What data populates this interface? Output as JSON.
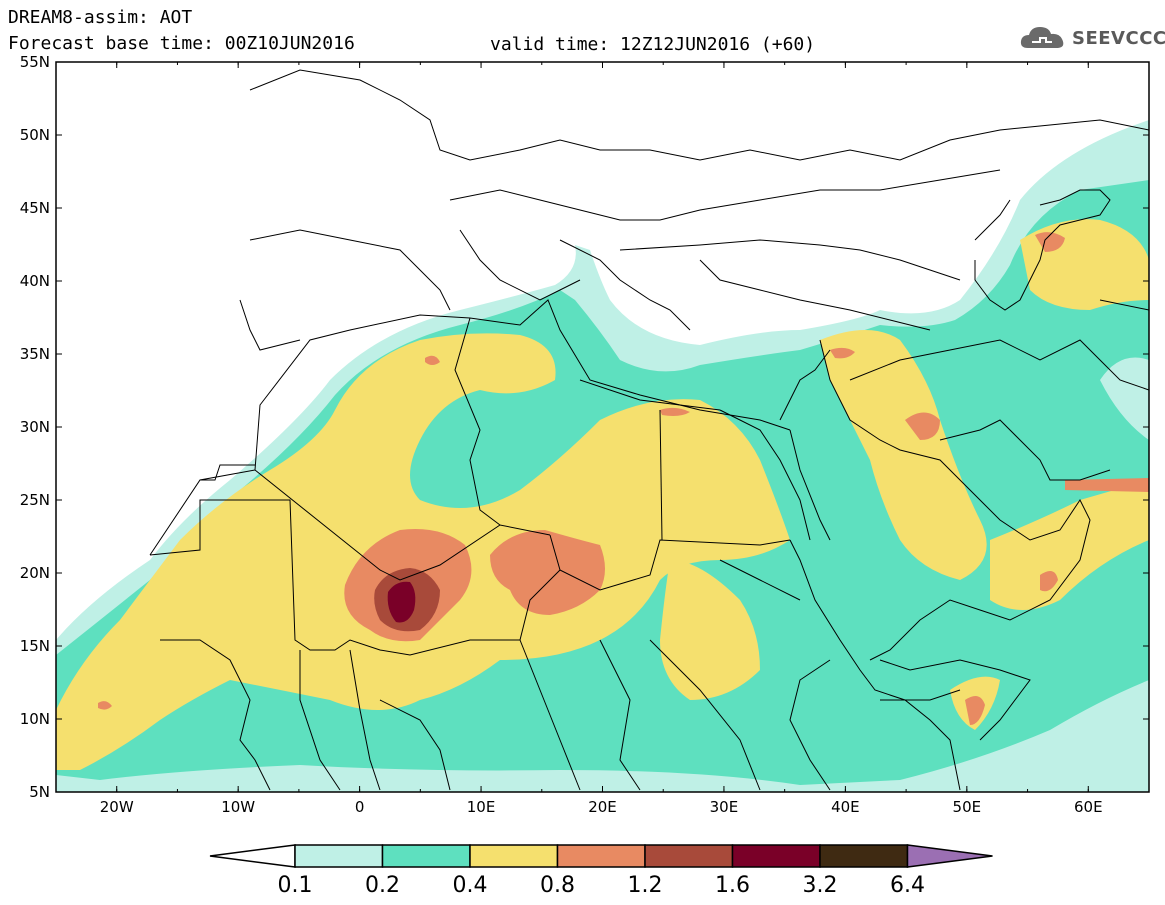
{
  "header": {
    "title_line1": "DREAM8-assim: AOT",
    "title_line2": "Forecast base time: 00Z10JUN2016",
    "valid_time": "valid time: 12Z12JUN2016 (+60)"
  },
  "logo": {
    "text": "SEEVCCC",
    "icon": "cloud-icon"
  },
  "map": {
    "lat_labels": [
      "55N",
      "50N",
      "45N",
      "40N",
      "35N",
      "30N",
      "25N",
      "20N",
      "15N",
      "10N",
      "5N"
    ],
    "lon_labels": [
      "20W",
      "10W",
      "0",
      "10E",
      "20E",
      "30E",
      "40E",
      "50E",
      "60E"
    ],
    "lat_range": [
      5,
      55
    ],
    "lon_range": [
      -25,
      65
    ]
  },
  "colorbar": {
    "levels": [
      "0.1",
      "0.2",
      "0.4",
      "0.8",
      "1.2",
      "1.6",
      "3.2",
      "6.4"
    ],
    "colors": [
      "#bff0e6",
      "#5ee0bf",
      "#f5e06e",
      "#e88a62",
      "#a84a3a",
      "#7a0028",
      "#3f2a12"
    ],
    "over_color": "#9b6fb3",
    "under_color": "#ffffff"
  },
  "palette": {
    "c1": "#bff0e6",
    "c2": "#5ee0bf",
    "c3": "#f5e06e",
    "c4": "#e88a62",
    "c5": "#a84a3a",
    "c6": "#7a0028"
  }
}
